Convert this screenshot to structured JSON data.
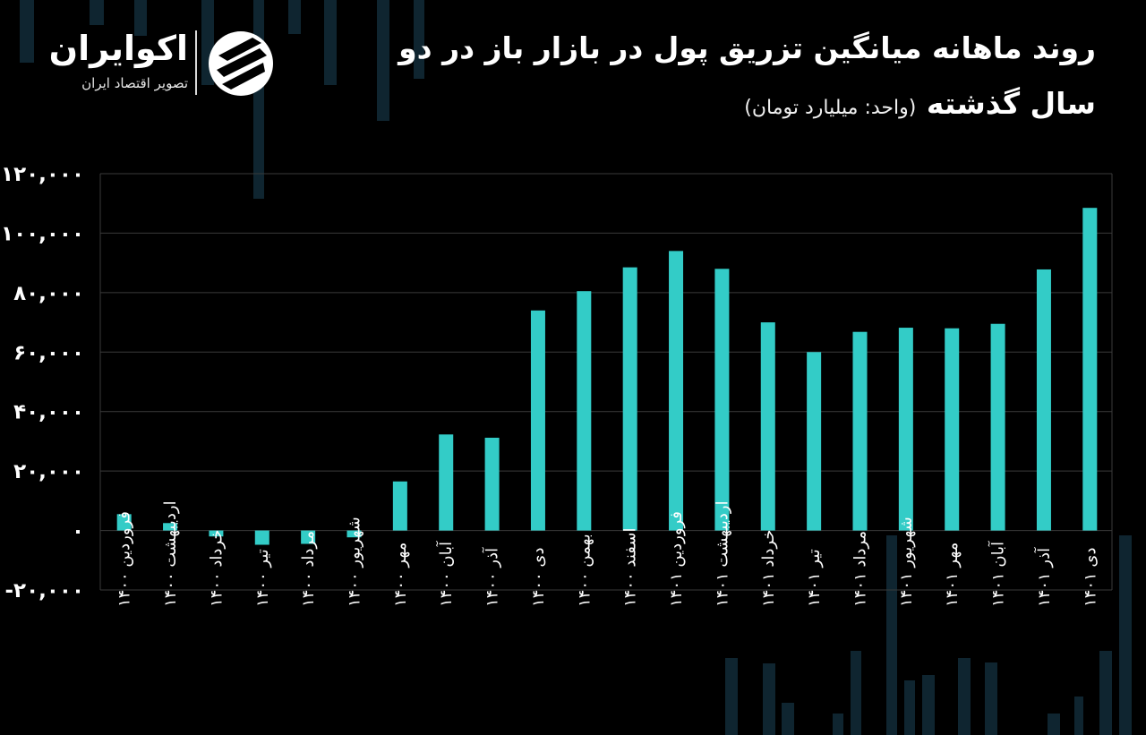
{
  "logo": {
    "name": "اکوایران",
    "tagline": "تصویر اقتصاد ایران"
  },
  "title": {
    "line1": "روند ماهانه میانگین تزریق پول در بازار باز در دو",
    "line2": "سال گذشته",
    "unit": "(واحد: میلیارد تومان)"
  },
  "colors": {
    "background": "#000000",
    "bar": "#33ccc7",
    "grid": "#3a3a3a",
    "text": "#ffffff",
    "decoration": "#0f2530"
  },
  "chart_data": {
    "type": "bar",
    "title": "روند ماهانه میانگین تزریق پول در بازار باز در دو سال گذشته",
    "xlabel": "",
    "ylabel": "",
    "unit": "میلیارد تومان",
    "ylim": [
      -20000,
      120000
    ],
    "yticks": [
      -20000,
      0,
      20000,
      40000,
      60000,
      80000,
      100000,
      120000
    ],
    "ytick_labels": [
      "-۲۰,۰۰۰",
      "۰",
      "۲۰,۰۰۰",
      "۴۰,۰۰۰",
      "۶۰,۰۰۰",
      "۸۰,۰۰۰",
      "۱۰۰,۰۰۰",
      "۱۲۰,۰۰۰"
    ],
    "grid": true,
    "categories": [
      "فروردین ۱۴۰۰",
      "اردیبهشت ۱۴۰۰",
      "خرداد ۱۴۰۰",
      "تیر ۱۴۰۰",
      "مرداد ۱۴۰۰",
      "شهریور ۱۴۰۰",
      "مهر ۱۴۰۰",
      "آبان ۱۴۰۰",
      "آذر ۱۴۰۰",
      "دی ۱۴۰۰",
      "بهمن ۱۴۰۰",
      "اسفند ۱۴۰۰",
      "فروردین ۱۴۰۱",
      "اردیبهشت ۱۴۰۱",
      "خرداد ۱۴۰۱",
      "تیر ۱۴۰۱",
      "مرداد ۱۴۰۱",
      "شهریور ۱۴۰۱",
      "مهر ۱۴۰۱",
      "آبان ۱۴۰۱",
      "آذر ۱۴۰۱",
      "دی ۱۴۰۱"
    ],
    "values": [
      5500,
      2500,
      -2000,
      -4800,
      -4500,
      -2300,
      16500,
      32300,
      31200,
      74000,
      80500,
      88500,
      94000,
      88000,
      70000,
      60000,
      66800,
      68200,
      68000,
      69500,
      87800,
      108500
    ]
  }
}
